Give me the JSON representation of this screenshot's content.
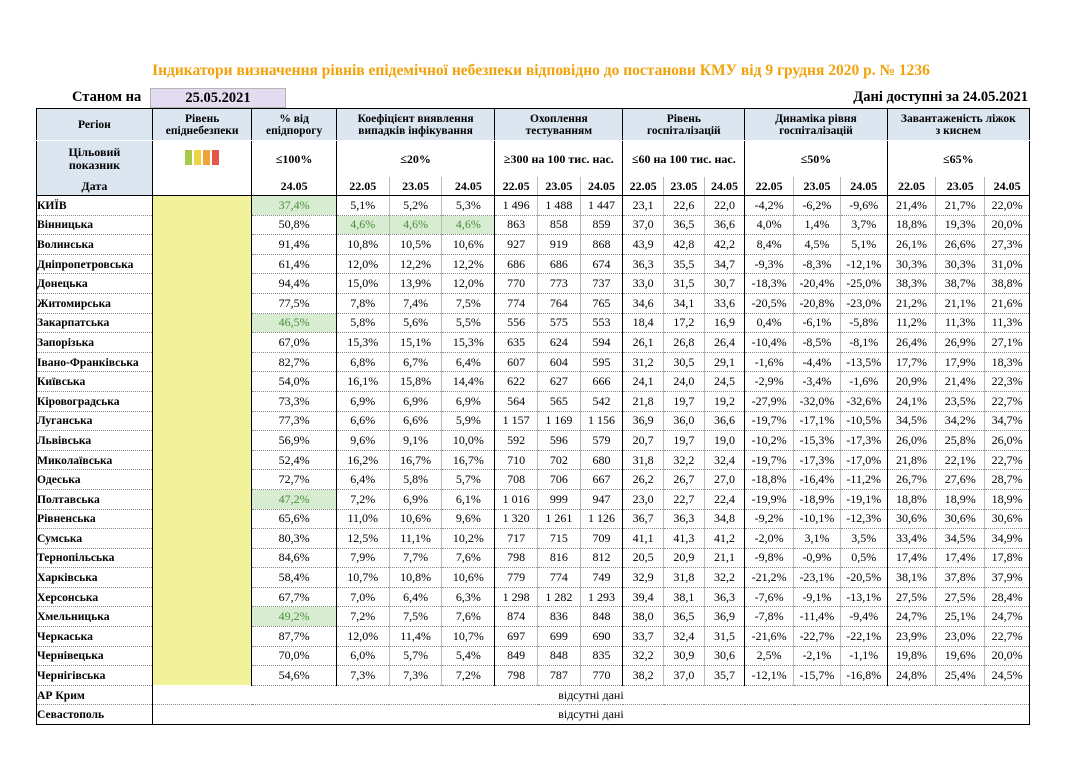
{
  "title": "Індикатори визначення рівнів епідемічної небезпеки відповідно до постанови КМУ від 9 грудня 2020 р. № 1236",
  "as_of_label": "Станом на",
  "as_of_date": "25.05.2021",
  "data_available": "Дані доступні за 24.05.2021",
  "headers": {
    "region": "Регіон",
    "level_line1": "Рівень",
    "level_line2": "епіднебезпеки",
    "pct_line1": "% від",
    "pct_line2": "епідпорогу",
    "detect_line1": "Коефіцієнт виявлення",
    "detect_line2": "випадків інфікування",
    "test_line1": "Охоплення",
    "test_line2": "тестуванням",
    "hosp_line1": "Рівень",
    "hosp_line2": "госпіталізацій",
    "dyn_line1": "Динаміка рівня",
    "dyn_line2": "госпіталізацій",
    "beds_line1": "Завантаженість ліжок",
    "beds_line2": "з киснем"
  },
  "target": {
    "label_line1": "Цільовий",
    "label_line2": "показник",
    "pct": "≤100%",
    "detect": "≤20%",
    "test": "≥300 на 100 тис. нас.",
    "hosp": "≤60 на 100 тис. нас.",
    "dyn": "≤50%",
    "beds": "≤65%"
  },
  "legend_colors": [
    "#a6c94b",
    "#f0d343",
    "#f2a23b",
    "#e2574a"
  ],
  "date_label": "Дата",
  "dates": {
    "pct": "24.05",
    "triple": [
      "22.05",
      "23.05",
      "24.05"
    ]
  },
  "rows": [
    {
      "region": "КИЇВ",
      "pct": "37,4%",
      "pct_green": true,
      "detect": [
        "5,1%",
        "5,2%",
        "5,3%"
      ],
      "detect_green": false,
      "test": [
        "1 496",
        "1 488",
        "1 447"
      ],
      "hosp": [
        "23,1",
        "22,6",
        "22,0"
      ],
      "dyn": [
        "-4,2%",
        "-6,2%",
        "-9,6%"
      ],
      "beds": [
        "21,4%",
        "21,7%",
        "22,0%"
      ]
    },
    {
      "region": "Вінницька",
      "pct": "50,8%",
      "pct_green": false,
      "detect": [
        "4,6%",
        "4,6%",
        "4,6%"
      ],
      "detect_green": true,
      "test": [
        "863",
        "858",
        "859"
      ],
      "hosp": [
        "37,0",
        "36,5",
        "36,6"
      ],
      "dyn": [
        "4,0%",
        "1,4%",
        "3,7%"
      ],
      "beds": [
        "18,8%",
        "19,3%",
        "20,0%"
      ]
    },
    {
      "region": "Волинська",
      "pct": "91,4%",
      "pct_green": false,
      "detect": [
        "10,8%",
        "10,5%",
        "10,6%"
      ],
      "detect_green": false,
      "test": [
        "927",
        "919",
        "868"
      ],
      "hosp": [
        "43,9",
        "42,8",
        "42,2"
      ],
      "dyn": [
        "8,4%",
        "4,5%",
        "5,1%"
      ],
      "beds": [
        "26,1%",
        "26,6%",
        "27,3%"
      ]
    },
    {
      "region": "Дніпропетровська",
      "pct": "61,4%",
      "pct_green": false,
      "detect": [
        "12,0%",
        "12,2%",
        "12,2%"
      ],
      "detect_green": false,
      "test": [
        "686",
        "686",
        "674"
      ],
      "hosp": [
        "36,3",
        "35,5",
        "34,7"
      ],
      "dyn": [
        "-9,3%",
        "-8,3%",
        "-12,1%"
      ],
      "beds": [
        "30,3%",
        "30,3%",
        "31,0%"
      ]
    },
    {
      "region": "Донецька",
      "pct": "94,4%",
      "pct_green": false,
      "detect": [
        "15,0%",
        "13,9%",
        "12,0%"
      ],
      "detect_green": false,
      "test": [
        "770",
        "773",
        "737"
      ],
      "hosp": [
        "33,0",
        "31,5",
        "30,7"
      ],
      "dyn": [
        "-18,3%",
        "-20,4%",
        "-25,0%"
      ],
      "beds": [
        "38,3%",
        "38,7%",
        "38,8%"
      ]
    },
    {
      "region": "Житомирська",
      "pct": "77,5%",
      "pct_green": false,
      "detect": [
        "7,8%",
        "7,4%",
        "7,5%"
      ],
      "detect_green": false,
      "test": [
        "774",
        "764",
        "765"
      ],
      "hosp": [
        "34,6",
        "34,1",
        "33,6"
      ],
      "dyn": [
        "-20,5%",
        "-20,8%",
        "-23,0%"
      ],
      "beds": [
        "21,2%",
        "21,1%",
        "21,6%"
      ]
    },
    {
      "region": "Закарпатська",
      "pct": "46,5%",
      "pct_green": true,
      "detect": [
        "5,8%",
        "5,6%",
        "5,5%"
      ],
      "detect_green": false,
      "test": [
        "556",
        "575",
        "553"
      ],
      "hosp": [
        "18,4",
        "17,2",
        "16,9"
      ],
      "dyn": [
        "0,4%",
        "-6,1%",
        "-5,8%"
      ],
      "beds": [
        "11,2%",
        "11,3%",
        "11,3%"
      ]
    },
    {
      "region": "Запорізька",
      "pct": "67,0%",
      "pct_green": false,
      "detect": [
        "15,3%",
        "15,1%",
        "15,3%"
      ],
      "detect_green": false,
      "test": [
        "635",
        "624",
        "594"
      ],
      "hosp": [
        "26,1",
        "26,8",
        "26,4"
      ],
      "dyn": [
        "-10,4%",
        "-8,5%",
        "-8,1%"
      ],
      "beds": [
        "26,4%",
        "26,9%",
        "27,1%"
      ]
    },
    {
      "region": "Івано-Франківська",
      "pct": "82,7%",
      "pct_green": false,
      "detect": [
        "6,8%",
        "6,7%",
        "6,4%"
      ],
      "detect_green": false,
      "test": [
        "607",
        "604",
        "595"
      ],
      "hosp": [
        "31,2",
        "30,5",
        "29,1"
      ],
      "dyn": [
        "-1,6%",
        "-4,4%",
        "-13,5%"
      ],
      "beds": [
        "17,7%",
        "17,9%",
        "18,3%"
      ]
    },
    {
      "region": "Київська",
      "pct": "54,0%",
      "pct_green": false,
      "detect": [
        "16,1%",
        "15,8%",
        "14,4%"
      ],
      "detect_green": false,
      "test": [
        "622",
        "627",
        "666"
      ],
      "hosp": [
        "24,1",
        "24,0",
        "24,5"
      ],
      "dyn": [
        "-2,9%",
        "-3,4%",
        "-1,6%"
      ],
      "beds": [
        "20,9%",
        "21,4%",
        "22,3%"
      ]
    },
    {
      "region": "Кіровоградська",
      "pct": "73,3%",
      "pct_green": false,
      "detect": [
        "6,9%",
        "6,9%",
        "6,9%"
      ],
      "detect_green": false,
      "test": [
        "564",
        "565",
        "542"
      ],
      "hosp": [
        "21,8",
        "19,7",
        "19,2"
      ],
      "dyn": [
        "-27,9%",
        "-32,0%",
        "-32,6%"
      ],
      "beds": [
        "24,1%",
        "23,5%",
        "22,7%"
      ]
    },
    {
      "region": "Луганська",
      "pct": "77,3%",
      "pct_green": false,
      "detect": [
        "6,6%",
        "6,6%",
        "5,9%"
      ],
      "detect_green": false,
      "test": [
        "1 157",
        "1 169",
        "1 156"
      ],
      "hosp": [
        "36,9",
        "36,0",
        "36,6"
      ],
      "dyn": [
        "-19,7%",
        "-17,1%",
        "-10,5%"
      ],
      "beds": [
        "34,5%",
        "34,2%",
        "34,7%"
      ]
    },
    {
      "region": "Львівська",
      "pct": "56,9%",
      "pct_green": false,
      "detect": [
        "9,6%",
        "9,1%",
        "10,0%"
      ],
      "detect_green": false,
      "test": [
        "592",
        "596",
        "579"
      ],
      "hosp": [
        "20,7",
        "19,7",
        "19,0"
      ],
      "dyn": [
        "-10,2%",
        "-15,3%",
        "-17,3%"
      ],
      "beds": [
        "26,0%",
        "25,8%",
        "26,0%"
      ]
    },
    {
      "region": "Миколаївська",
      "pct": "52,4%",
      "pct_green": false,
      "detect": [
        "16,2%",
        "16,7%",
        "16,7%"
      ],
      "detect_green": false,
      "test": [
        "710",
        "702",
        "680"
      ],
      "hosp": [
        "31,8",
        "32,2",
        "32,4"
      ],
      "dyn": [
        "-19,7%",
        "-17,3%",
        "-17,0%"
      ],
      "beds": [
        "21,8%",
        "22,1%",
        "22,7%"
      ]
    },
    {
      "region": "Одеська",
      "pct": "72,7%",
      "pct_green": false,
      "detect": [
        "6,4%",
        "5,8%",
        "5,7%"
      ],
      "detect_green": false,
      "test": [
        "708",
        "706",
        "667"
      ],
      "hosp": [
        "26,2",
        "26,7",
        "27,0"
      ],
      "dyn": [
        "-18,8%",
        "-16,4%",
        "-11,2%"
      ],
      "beds": [
        "26,7%",
        "27,6%",
        "28,7%"
      ]
    },
    {
      "region": "Полтавська",
      "pct": "47,2%",
      "pct_green": true,
      "detect": [
        "7,2%",
        "6,9%",
        "6,1%"
      ],
      "detect_green": false,
      "test": [
        "1 016",
        "999",
        "947"
      ],
      "hosp": [
        "23,0",
        "22,7",
        "22,4"
      ],
      "dyn": [
        "-19,9%",
        "-18,9%",
        "-19,1%"
      ],
      "beds": [
        "18,8%",
        "18,9%",
        "18,9%"
      ]
    },
    {
      "region": "Рівненська",
      "pct": "65,6%",
      "pct_green": false,
      "detect": [
        "11,0%",
        "10,6%",
        "9,6%"
      ],
      "detect_green": false,
      "test": [
        "1 320",
        "1 261",
        "1 126"
      ],
      "hosp": [
        "36,7",
        "36,3",
        "34,8"
      ],
      "dyn": [
        "-9,2%",
        "-10,1%",
        "-12,3%"
      ],
      "beds": [
        "30,6%",
        "30,6%",
        "30,6%"
      ]
    },
    {
      "region": "Сумська",
      "pct": "80,3%",
      "pct_green": false,
      "detect": [
        "12,5%",
        "11,1%",
        "10,2%"
      ],
      "detect_green": false,
      "test": [
        "717",
        "715",
        "709"
      ],
      "hosp": [
        "41,1",
        "41,3",
        "41,2"
      ],
      "dyn": [
        "-2,0%",
        "3,1%",
        "3,5%"
      ],
      "beds": [
        "33,4%",
        "34,5%",
        "34,9%"
      ]
    },
    {
      "region": "Тернопільська",
      "pct": "84,6%",
      "pct_green": false,
      "detect": [
        "7,9%",
        "7,7%",
        "7,6%"
      ],
      "detect_green": false,
      "test": [
        "798",
        "816",
        "812"
      ],
      "hosp": [
        "20,5",
        "20,9",
        "21,1"
      ],
      "dyn": [
        "-9,8%",
        "-0,9%",
        "0,5%"
      ],
      "beds": [
        "17,4%",
        "17,4%",
        "17,8%"
      ]
    },
    {
      "region": "Харківська",
      "pct": "58,4%",
      "pct_green": false,
      "detect": [
        "10,7%",
        "10,8%",
        "10,6%"
      ],
      "detect_green": false,
      "test": [
        "779",
        "774",
        "749"
      ],
      "hosp": [
        "32,9",
        "31,8",
        "32,2"
      ],
      "dyn": [
        "-21,2%",
        "-23,1%",
        "-20,5%"
      ],
      "beds": [
        "38,1%",
        "37,8%",
        "37,9%"
      ]
    },
    {
      "region": "Херсонська",
      "pct": "67,7%",
      "pct_green": false,
      "detect": [
        "7,0%",
        "6,4%",
        "6,3%"
      ],
      "detect_green": false,
      "test": [
        "1 298",
        "1 282",
        "1 293"
      ],
      "hosp": [
        "39,4",
        "38,1",
        "36,3"
      ],
      "dyn": [
        "-7,6%",
        "-9,1%",
        "-13,1%"
      ],
      "beds": [
        "27,5%",
        "27,5%",
        "28,4%"
      ]
    },
    {
      "region": "Хмельницька",
      "pct": "49,2%",
      "pct_green": true,
      "detect": [
        "7,2%",
        "7,5%",
        "7,6%"
      ],
      "detect_green": false,
      "test": [
        "874",
        "836",
        "848"
      ],
      "hosp": [
        "38,0",
        "36,5",
        "36,9"
      ],
      "dyn": [
        "-7,8%",
        "-11,4%",
        "-9,4%"
      ],
      "beds": [
        "24,7%",
        "25,1%",
        "24,7%"
      ]
    },
    {
      "region": "Черкаська",
      "pct": "87,7%",
      "pct_green": false,
      "detect": [
        "12,0%",
        "11,4%",
        "10,7%"
      ],
      "detect_green": false,
      "test": [
        "697",
        "699",
        "690"
      ],
      "hosp": [
        "33,7",
        "32,4",
        "31,5"
      ],
      "dyn": [
        "-21,6%",
        "-22,7%",
        "-22,1%"
      ],
      "beds": [
        "23,9%",
        "23,0%",
        "22,7%"
      ]
    },
    {
      "region": "Чернівецька",
      "pct": "70,0%",
      "pct_green": false,
      "detect": [
        "6,0%",
        "5,7%",
        "5,4%"
      ],
      "detect_green": false,
      "test": [
        "849",
        "848",
        "835"
      ],
      "hosp": [
        "32,2",
        "30,9",
        "30,6"
      ],
      "dyn": [
        "2,5%",
        "-2,1%",
        "-1,1%"
      ],
      "beds": [
        "19,8%",
        "19,6%",
        "20,0%"
      ]
    },
    {
      "region": "Чернігівська",
      "pct": "54,6%",
      "pct_green": false,
      "detect": [
        "7,3%",
        "7,3%",
        "7,2%"
      ],
      "detect_green": false,
      "test": [
        "798",
        "787",
        "770"
      ],
      "hosp": [
        "38,2",
        "37,0",
        "35,7"
      ],
      "dyn": [
        "-12,1%",
        "-15,7%",
        "-16,8%"
      ],
      "beds": [
        "24,8%",
        "25,4%",
        "24,5%"
      ]
    }
  ],
  "na_rows": [
    {
      "region": "АР Крим",
      "message": "відсутні дані"
    },
    {
      "region": "Севастополь",
      "message": "відсутні дані"
    }
  ]
}
